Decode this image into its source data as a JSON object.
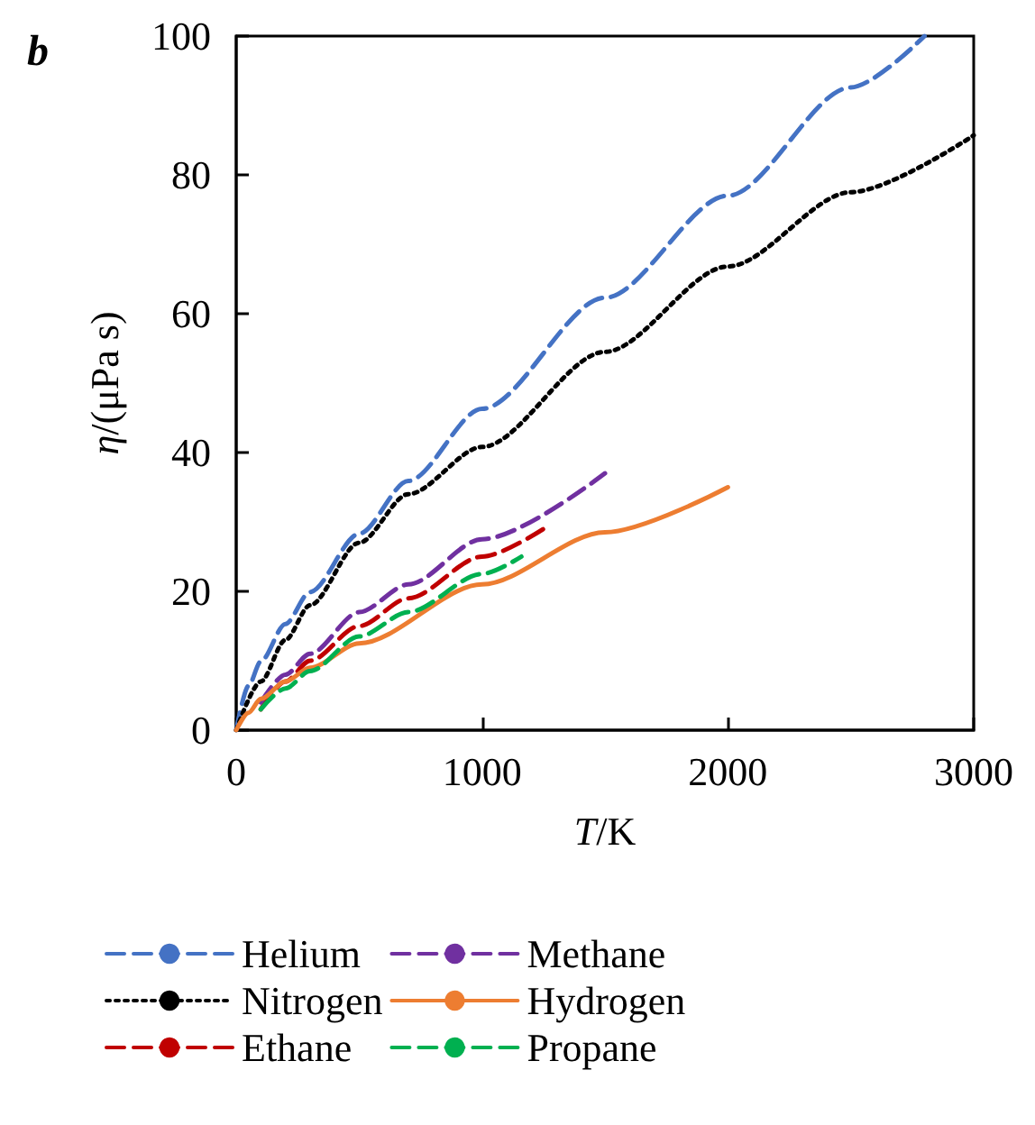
{
  "chart_data": {
    "type": "line",
    "title": "b",
    "xlabel": "T/K",
    "ylabel": "η/(μPa s)",
    "xlim": [
      0,
      3000
    ],
    "xticks": [
      0,
      1000,
      2000,
      3000
    ],
    "ylim": [
      0,
      100
    ],
    "yticks": [
      0,
      20,
      40,
      60,
      80,
      100
    ],
    "grid": false,
    "legend": "bottom",
    "marker": "none",
    "series": [
      {
        "name": "Helium",
        "color": "#4472c4",
        "line_style": "dashed",
        "x": [
          0,
          50,
          100,
          200,
          300,
          500,
          700,
          1000,
          1500,
          2000,
          2500,
          2800
        ],
        "values": [
          0,
          6.4,
          9.9,
          15.3,
          19.9,
          28.3,
          35.9,
          46.3,
          62.3,
          77,
          92.6,
          100
        ]
      },
      {
        "name": "Nitrogen",
        "color": "#000000",
        "line_style": "dotted",
        "x": [
          0,
          100,
          200,
          300,
          500,
          700,
          1000,
          1500,
          2000,
          2500,
          3000
        ],
        "values": [
          0,
          7,
          13,
          18,
          27,
          34,
          40.8,
          54.5,
          66.8,
          77.5,
          85.7
        ]
      },
      {
        "name": "Ethane",
        "color": "#c00000",
        "line_style": "dashed",
        "x": [
          100,
          200,
          300,
          500,
          700,
          1000,
          1250
        ],
        "values": [
          3,
          7,
          10,
          15,
          19,
          25,
          29
        ]
      },
      {
        "name": "Methane",
        "color": "#7030a0",
        "line_style": "dashed",
        "x": [
          100,
          200,
          300,
          500,
          700,
          1000,
          1500
        ],
        "values": [
          4,
          8,
          11,
          17,
          21,
          27.5,
          37
        ]
      },
      {
        "name": "Hydrogen",
        "color": "#ed7d31",
        "line_style": "solid",
        "x": [
          0,
          50,
          100,
          200,
          300,
          500,
          1000,
          1500,
          2000
        ],
        "values": [
          0,
          2.5,
          4.5,
          7,
          9,
          12.5,
          21,
          28.5,
          35
        ]
      },
      {
        "name": "Propane",
        "color": "#00b050",
        "line_style": "dashed",
        "x": [
          100,
          200,
          300,
          500,
          700,
          1000,
          1160
        ],
        "values": [
          3,
          6,
          8.5,
          13.5,
          17,
          22.5,
          25
        ]
      }
    ]
  }
}
